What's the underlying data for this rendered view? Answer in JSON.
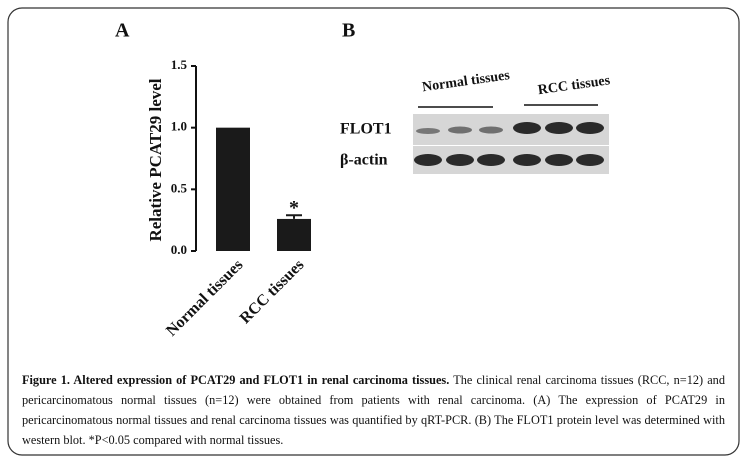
{
  "chart_data": {
    "type": "bar",
    "panel_label": "A",
    "y_label": "Relative  PCAT29 level",
    "categories": [
      "Normal tissues",
      "RCC tissues"
    ],
    "values": [
      1.0,
      0.26
    ],
    "errors": [
      null,
      0.03
    ],
    "significance_labels": [
      null,
      "*"
    ],
    "color": "#1a1a1a",
    "ylim": [
      0,
      1.5
    ],
    "yticks": [
      {
        "value": 0,
        "label": "0.0"
      },
      0.5,
      {
        "value": 1,
        "label": "1.0"
      },
      1.5
    ]
  },
  "blot": {
    "panel_label": "B",
    "groups": [
      "Normal tissues",
      "RCC tissues"
    ],
    "rows": [
      "FLOT1",
      "β-actin"
    ]
  },
  "caption": {
    "title": "Figure 1. Altered expression of PCAT29 and FLOT1 in renal carcinoma tissues.",
    "text": "The clinical renal carcinoma tissues (RCC, n=12) and pericarcinomatous normal tissues (n=12) were obtained from patients with renal carcinoma. (A) The expression of PCAT29 in pericarcinomatous normal tissues and renal carcinoma tissues was quantified by qRT-PCR. (B) The FLOT1 protein level was determined with western blot. *P<0.05 compared with normal tissues."
  }
}
